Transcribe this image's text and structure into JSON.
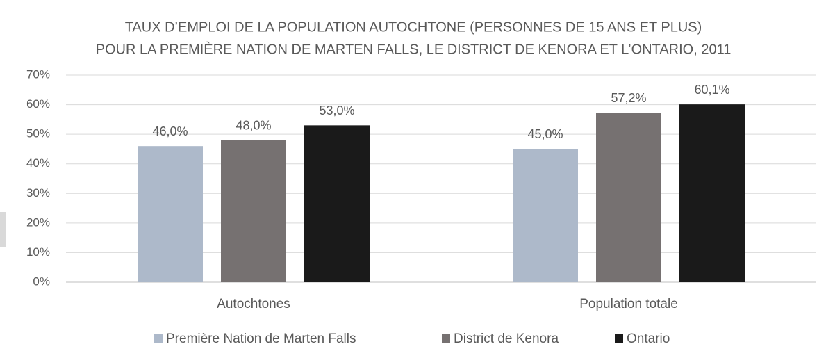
{
  "chart_data": {
    "type": "bar",
    "title": [
      "TAUX D’EMPLOI DE LA POPULATION AUTOCHTONE (PERSONNES DE 15 ANS ET PLUS)",
      "POUR LA PREMIÈRE NATION DE MARTEN FALLS, LE DISTRICT DE KENORA ET L’ONTARIO, 2011"
    ],
    "categories": [
      "Autochtones",
      "Population totale"
    ],
    "series": [
      {
        "name": "Première Nation de Marten Falls",
        "color": "#adb9ca",
        "values": [
          46.0,
          45.0
        ],
        "value_labels": [
          "46,0%",
          "45,0%"
        ]
      },
      {
        "name": "District de Kenora",
        "color": "#767171",
        "values": [
          48.0,
          57.2
        ],
        "value_labels": [
          "48,0%",
          "57,2%"
        ]
      },
      {
        "name": "Ontario",
        "color": "#1a1a1a",
        "values": [
          53.0,
          60.1
        ],
        "value_labels": [
          "53,0%",
          "60,1%"
        ]
      }
    ],
    "ylim": [
      0,
      70
    ],
    "yticks": [
      {
        "value": 0,
        "label": "0%"
      },
      {
        "value": 10,
        "label": "10%"
      },
      {
        "value": 20,
        "label": "20%"
      },
      {
        "value": 30,
        "label": "30%"
      },
      {
        "value": 40,
        "label": "40%"
      },
      {
        "value": 50,
        "label": "50%"
      },
      {
        "value": 60,
        "label": "60%"
      },
      {
        "value": 70,
        "label": "70%"
      }
    ],
    "grid": true,
    "legend": "bottom"
  }
}
